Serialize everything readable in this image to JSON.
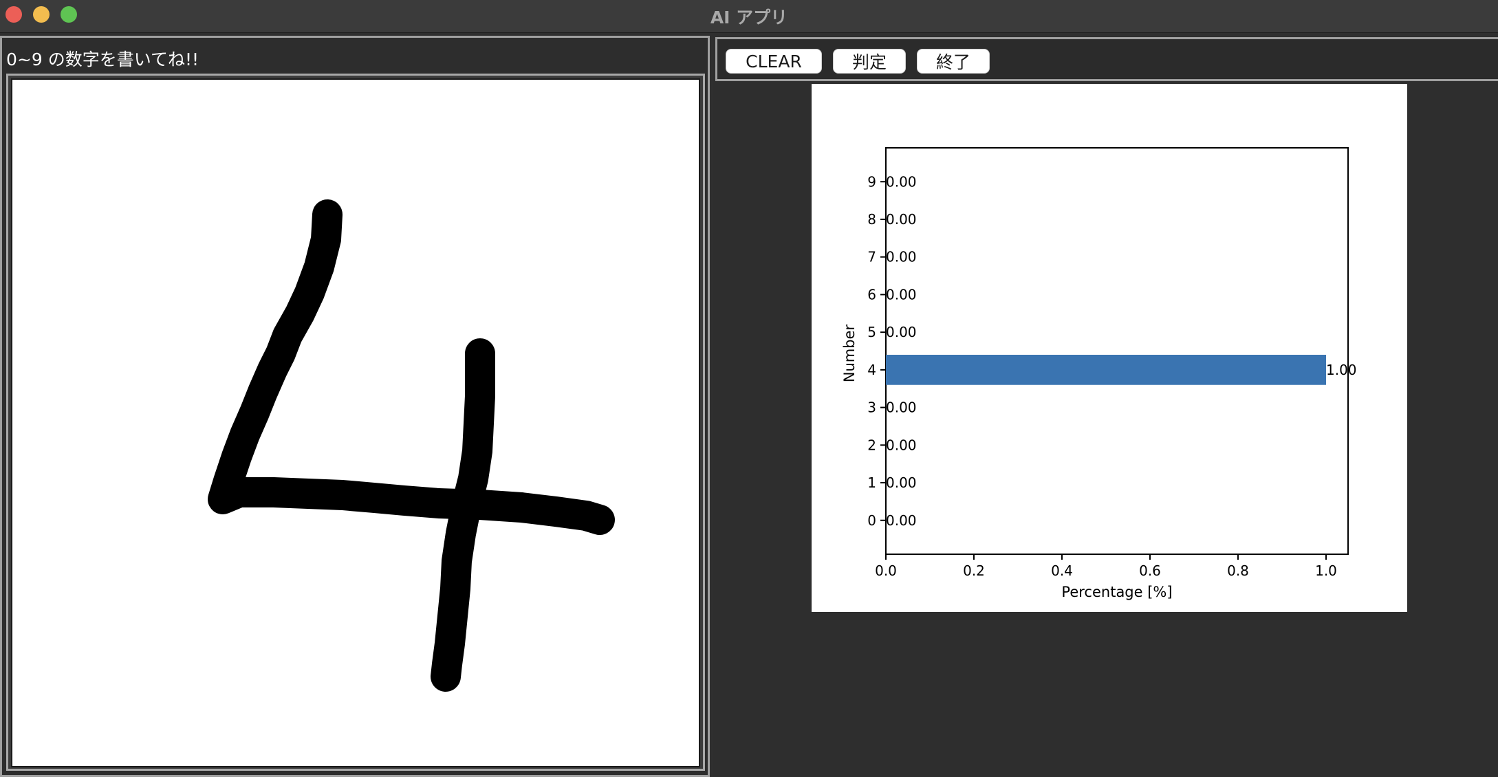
{
  "window": {
    "title": "AI アプリ"
  },
  "left_panel": {
    "instruction": "0~9 の数字を書いてね!!",
    "canvas_content": "handwritten digit 4"
  },
  "toolbar": {
    "clear_label": "CLEAR",
    "judge_label": "判定",
    "exit_label": "終了"
  },
  "chart_data": {
    "type": "bar",
    "orientation": "horizontal",
    "categories": [
      "0",
      "1",
      "2",
      "3",
      "4",
      "5",
      "6",
      "7",
      "8",
      "9"
    ],
    "values": [
      0.0,
      0.0,
      0.0,
      0.0,
      1.0,
      0.0,
      0.0,
      0.0,
      0.0,
      0.0
    ],
    "value_labels": [
      "0.00",
      "0.00",
      "0.00",
      "0.00",
      "1.00",
      "0.00",
      "0.00",
      "0.00",
      "0.00",
      "0.00"
    ],
    "xlabel": "Percentage [%]",
    "ylabel": "Number",
    "xlim": [
      0.0,
      1.05
    ],
    "xticks": [
      "0.0",
      "0.2",
      "0.4",
      "0.6",
      "0.8",
      "1.0"
    ],
    "bar_color": "#3a74b1",
    "title": ""
  }
}
